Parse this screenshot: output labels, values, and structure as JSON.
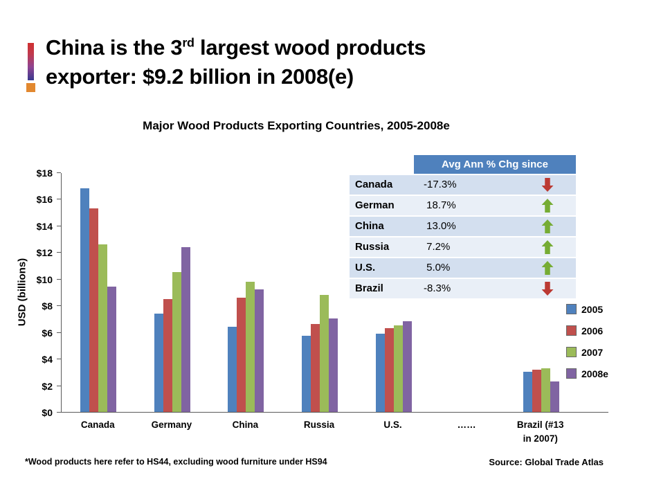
{
  "slide": {
    "title": {
      "line1_pre": "China is the 3",
      "line1_sup": "rd",
      "line1_post": " largest wood products",
      "line2": "exporter: $9.2 billion in 2008(e)"
    },
    "footnote": "*Wood products here refer to HS44, excluding wood furniture under HS94",
    "source": "Source: Global Trade Atlas"
  },
  "chart_data": {
    "type": "bar",
    "title": "Major Wood Products Exporting Countries, 2005-2008e",
    "ylabel": "USD (billions)",
    "ylim": [
      0,
      18
    ],
    "grid": false,
    "legend_position": "right",
    "yticks": [
      {
        "label": "$18",
        "value": 18
      },
      {
        "label": "$16",
        "value": 16
      },
      {
        "label": "$14",
        "value": 14
      },
      {
        "label": "$12",
        "value": 12
      },
      {
        "label": "$10",
        "value": 10
      },
      {
        "label": "$8",
        "value": 8
      },
      {
        "label": "$6",
        "value": 6
      },
      {
        "label": "$4",
        "value": 4
      },
      {
        "label": "$2",
        "value": 2
      },
      {
        "label": "$0",
        "value": 0
      }
    ],
    "categories": [
      "Canada",
      "Germany",
      "China",
      "Russia",
      "U.S.",
      "……",
      "Brazil (#13\nin 2007)"
    ],
    "series": [
      {
        "name": "2005",
        "color": "#4F81BD",
        "values": [
          16.8,
          7.4,
          6.4,
          5.7,
          5.9,
          null,
          3.0
        ]
      },
      {
        "name": "2006",
        "color": "#C0504D",
        "values": [
          15.3,
          8.5,
          8.6,
          6.6,
          6.3,
          null,
          3.2
        ]
      },
      {
        "name": "2007",
        "color": "#9BBB59",
        "values": [
          12.6,
          10.5,
          9.8,
          8.8,
          6.5,
          null,
          3.3
        ]
      },
      {
        "name": "2008e",
        "color": "#8064A2",
        "values": [
          9.4,
          12.4,
          9.2,
          7.0,
          6.8,
          null,
          2.3
        ]
      }
    ]
  },
  "table": {
    "header": "Avg Ann % Chg since",
    "rows": [
      {
        "country": "Canada",
        "value": "-17.3%",
        "direction": "down"
      },
      {
        "country": "German",
        "value": " 18.7%",
        "direction": "up"
      },
      {
        "country": "China",
        "value": " 13.0%",
        "direction": "up"
      },
      {
        "country": "Russia",
        "value": " 7.2%",
        "direction": "up"
      },
      {
        "country": "U.S.",
        "value": " 5.0%",
        "direction": "up"
      },
      {
        "country": "Brazil",
        "value": "-8.3%",
        "direction": "down"
      }
    ]
  }
}
